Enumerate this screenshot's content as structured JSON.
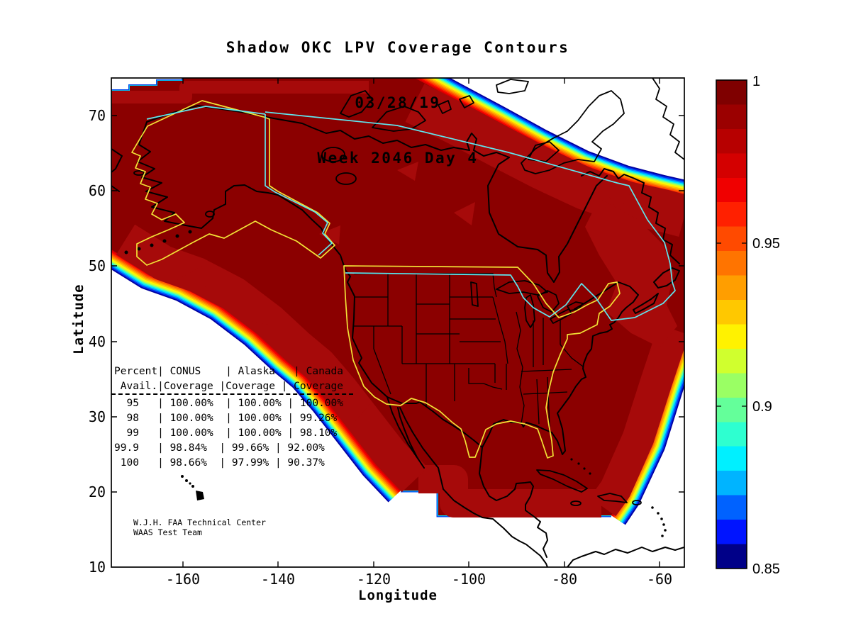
{
  "title": {
    "line1": "Shadow OKC LPV Coverage Contours",
    "line2": "03/28/19",
    "line3": "Week 2046 Day 4"
  },
  "axes": {
    "x_label": "Longitude",
    "y_label": "Latitude",
    "x_tick_labels": [
      "-160",
      "-140",
      "-120",
      "-100",
      "-80",
      "-60"
    ],
    "y_tick_labels": [
      "70",
      "60",
      "50",
      "40",
      "30",
      "20",
      "10"
    ]
  },
  "colorbar": {
    "tick_labels": [
      "1",
      "0.95",
      "0.9",
      "0.85"
    ],
    "min": 0.85,
    "max": 1.0,
    "colormap": "jet",
    "gradient_stops_top_to_bottom": [
      "#7F0000",
      "#9B0000",
      "#B70000",
      "#D40000",
      "#F00000",
      "#FF2000",
      "#FF4A00",
      "#FF7400",
      "#FF9E00",
      "#FFC800",
      "#FFF200",
      "#D0FF2E",
      "#9AFF64",
      "#64FF9A",
      "#2EFFD0",
      "#00F0FF",
      "#00B4FF",
      "#0062FF",
      "#0014FF",
      "#000088"
    ]
  },
  "coverage_table": {
    "header_line1": "Percent| CONUS    | Alaska   | Canada",
    "header_line2": " Avail.|Coverage |Coverage | Coverage",
    "rows": [
      "  95   | 100.00%  | 100.00% | 100.00%",
      "  98   | 100.00%  | 100.00% | 99.26%",
      "  99   | 100.00%  | 100.00% | 98.10%",
      "99.9   | 98.84%  | 99.66% | 92.00%",
      " 100   | 98.66%  | 97.99% | 90.37%"
    ]
  },
  "annotation": {
    "line1": "W.J.H. FAA Technical Center",
    "line2": "WAAS Test Team"
  },
  "chart_data": {
    "type": "filled_contour_map",
    "title": "Shadow OKC LPV Coverage Contours",
    "date": "03/28/19",
    "gps_week": "Week 2046 Day 4",
    "region": "North America (CONUS, Alaska, Canada)",
    "xlabel": "Longitude",
    "ylabel": "Latitude",
    "xlim": [
      -175,
      -55
    ],
    "ylim": [
      10,
      75
    ],
    "x_ticks": [
      -160,
      -140,
      -120,
      -100,
      -80,
      -60
    ],
    "y_ticks": [
      70,
      60,
      50,
      40,
      30,
      20,
      10
    ],
    "colorbar": {
      "min": 0.85,
      "max": 1.0,
      "ticks": [
        1,
        0.95,
        0.9,
        0.85
      ],
      "colormap": "jet",
      "quantity": "LPV coverage fraction"
    },
    "interior_color": "#8B0000",
    "secondary_contour_color": "#A60A0A",
    "contour_bands_inner_to_outer": [
      "#D40000",
      "#F50000",
      "#FF2E00",
      "#FF6000",
      "#FF9200",
      "#FFC400",
      "#FFF600",
      "#C8FF36",
      "#5CFFA2",
      "#00E8FF",
      "#0090FF",
      "#0030F0",
      "#0000A0"
    ],
    "overlays": {
      "coverage_region_boundary_color": "#F2E236",
      "service_volume_boundary_color": "#5FE6EE",
      "coastline_color": "#000000"
    },
    "availability_table": {
      "columns": [
        "Percent Avail.",
        "CONUS Coverage",
        "Alaska Coverage",
        "Canada Coverage"
      ],
      "rows": [
        [
          "95",
          "100.00%",
          "100.00%",
          "100.00%"
        ],
        [
          "98",
          "100.00%",
          "100.00%",
          "99.26%"
        ],
        [
          "99",
          "100.00%",
          "100.00%",
          "98.10%"
        ],
        [
          "99.9",
          "98.84%",
          "99.66%",
          "92.00%"
        ],
        [
          "100",
          "98.66%",
          "97.99%",
          "90.37%"
        ]
      ]
    },
    "annotation": [
      "W.J.H. FAA Technical Center",
      "WAAS Test Team"
    ]
  }
}
